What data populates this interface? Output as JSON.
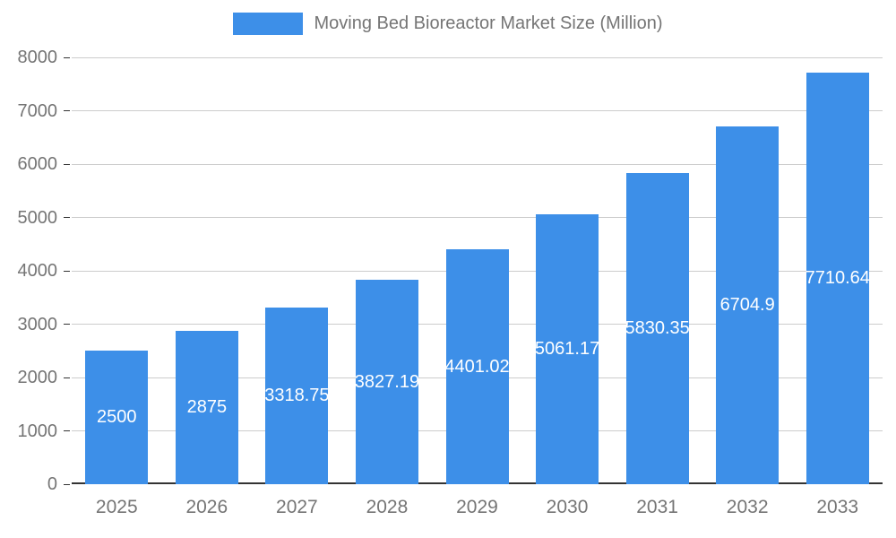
{
  "chart_data": {
    "type": "bar",
    "title": "Moving Bed Bioreactor Market Size (Million)",
    "categories": [
      "2025",
      "2026",
      "2027",
      "2028",
      "2029",
      "2030",
      "2031",
      "2032",
      "2033"
    ],
    "values": [
      2500,
      2875,
      3318.75,
      3827.19,
      4401.02,
      5061.17,
      5830.35,
      6704.9,
      7710.64
    ],
    "value_labels": [
      "2500",
      "2875",
      "3318.75",
      "3827.19",
      "4401.02",
      "5061.17",
      "5830.35",
      "6704.9",
      "7710.64"
    ],
    "xlabel": "",
    "ylabel": "",
    "ylim": [
      0,
      8000
    ],
    "ytick_step": 1000,
    "grid": true,
    "legend_position": "top",
    "bar_color": "#3D8FE8",
    "label_color": "#ffffff",
    "axis_text_color": "#757575",
    "grid_color": "#cccccc",
    "axis_line_color": "#333333"
  }
}
